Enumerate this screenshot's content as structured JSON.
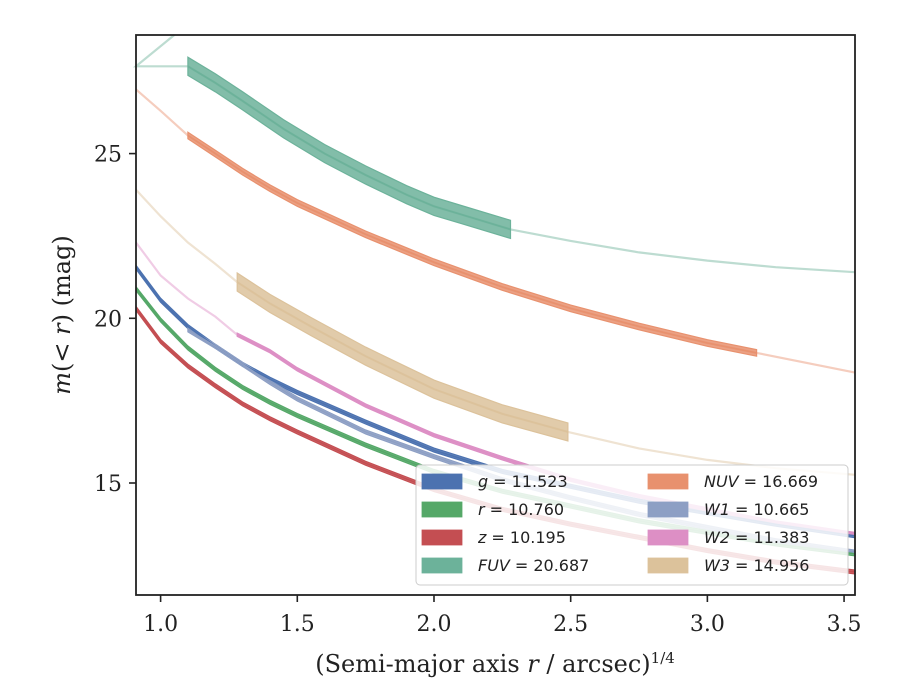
{
  "chart_data": {
    "type": "line",
    "xlabel_html": "(Semi-major axis <tspan font-style='italic'>r</tspan> / arcsec)<tspan baseline-shift='super' font-size='15'>1/4</tspan>",
    "xlabel": "(Semi-major axis r / arcsec)^1/4",
    "ylabel": "m(< r) (mag)",
    "xlim": [
      0.91,
      3.54
    ],
    "ylim": [
      28.6,
      11.6
    ],
    "y_inverted": true,
    "xticks": [
      1.0,
      1.5,
      2.0,
      2.5,
      3.0,
      3.5
    ],
    "xtick_labels": [
      "1.0",
      "1.5",
      "2.0",
      "2.5",
      "3.0",
      "3.5"
    ],
    "yticks": [
      15,
      20,
      25
    ],
    "ytick_labels": [
      "15",
      "20",
      "25"
    ],
    "grid": false,
    "legend_position": "lower-right",
    "legend_columns": 2,
    "series": [
      {
        "name": "g = 11.523",
        "label_sym": "g",
        "label_val": "= 11.523",
        "color": "#4c72b0",
        "x": [
          0.91,
          1.0,
          1.1,
          1.2,
          1.3,
          1.4,
          1.5,
          1.75,
          2.0,
          2.25,
          2.5,
          2.75,
          3.0,
          3.25,
          3.54
        ],
        "y": [
          21.55,
          20.55,
          19.75,
          19.15,
          18.6,
          18.15,
          17.75,
          16.85,
          16.0,
          15.35,
          14.9,
          14.45,
          14.1,
          13.75,
          13.4
        ],
        "band": 0.12,
        "band_x": [
          0.91,
          3.54
        ],
        "faint_x": [
          0.91,
          0.91
        ]
      },
      {
        "name": "r = 10.760",
        "label_sym": "r",
        "label_val": "= 10.760",
        "color": "#55a868",
        "x": [
          0.91,
          1.0,
          1.1,
          1.2,
          1.3,
          1.4,
          1.5,
          1.75,
          2.0,
          2.25,
          2.5,
          2.75,
          3.0,
          3.25,
          3.54
        ],
        "y": [
          20.9,
          19.95,
          19.1,
          18.45,
          17.9,
          17.45,
          17.05,
          16.15,
          15.35,
          14.75,
          14.3,
          13.85,
          13.5,
          13.15,
          12.85
        ],
        "band": 0.12,
        "band_x": [
          0.91,
          3.54
        ],
        "faint_x": [
          0.91,
          0.91
        ]
      },
      {
        "name": "z = 10.195",
        "label_sym": "z",
        "label_val": "= 10.195",
        "color": "#c44e52",
        "x": [
          0.91,
          1.0,
          1.1,
          1.2,
          1.3,
          1.4,
          1.5,
          1.75,
          2.0,
          2.25,
          2.5,
          2.75,
          3.0,
          3.25,
          3.54
        ],
        "y": [
          20.3,
          19.3,
          18.55,
          17.95,
          17.4,
          16.95,
          16.55,
          15.6,
          14.8,
          14.2,
          13.75,
          13.35,
          12.95,
          12.6,
          12.3
        ],
        "band": 0.12,
        "band_x": [
          0.91,
          3.54
        ],
        "faint_x": [
          0.91,
          0.91
        ]
      },
      {
        "name": "FUV = 20.687",
        "label_sym": "FUV",
        "label_val": "= 20.687",
        "color": "#6cb29a",
        "x": [
          1.1,
          1.2,
          1.3,
          1.45,
          1.6,
          1.75,
          1.9,
          2.0,
          2.1,
          2.28,
          2.5,
          2.75,
          3.0,
          3.25,
          3.54
        ],
        "y": [
          27.65,
          27.15,
          26.6,
          25.75,
          25.0,
          24.35,
          23.75,
          23.4,
          23.15,
          22.7,
          22.35,
          22.0,
          21.75,
          21.55,
          21.4
        ],
        "band": 0.55,
        "band_x": [
          1.1,
          2.28
        ],
        "faint_x": [
          0.91,
          3.54
        ],
        "faint_head_x": [
          1.05,
          1.1
        ],
        "faint_head_y": [
          28.6,
          27.9
        ]
      },
      {
        "name": "NUV = 16.669",
        "label_sym": "NUV",
        "label_val": "= 16.669",
        "color": "#e8916e",
        "x": [
          0.91,
          1.0,
          1.1,
          1.2,
          1.3,
          1.4,
          1.5,
          1.75,
          2.0,
          2.25,
          2.5,
          2.75,
          3.0,
          3.18,
          3.54
        ],
        "y": [
          26.95,
          26.3,
          25.55,
          25.0,
          24.45,
          23.95,
          23.5,
          22.55,
          21.7,
          20.95,
          20.3,
          19.75,
          19.25,
          18.95,
          18.35
        ],
        "band": 0.2,
        "band_x": [
          1.1,
          3.18
        ],
        "faint_x": [
          0.91,
          3.54
        ]
      },
      {
        "name": "W1 = 10.665",
        "label_sym": "W1",
        "label_val": "= 10.665",
        "color": "#8d9fc4",
        "x": [
          1.1,
          1.2,
          1.3,
          1.4,
          1.5,
          1.75,
          2.0,
          2.25,
          2.5,
          2.75,
          3.0,
          3.25,
          3.54
        ],
        "y": [
          19.65,
          19.15,
          18.6,
          18.05,
          17.55,
          16.55,
          15.8,
          15.1,
          14.55,
          14.05,
          13.65,
          13.25,
          12.9
        ],
        "band": 0.12,
        "band_x": [
          1.1,
          3.54
        ],
        "faint_x": [
          1.1,
          1.1
        ]
      },
      {
        "name": "W2 = 11.383",
        "label_sym": "W2",
        "label_val": "= 11.383",
        "color": "#dd8fc5",
        "x": [
          0.91,
          1.0,
          1.1,
          1.2,
          1.28,
          1.4,
          1.5,
          1.75,
          2.0,
          2.25,
          2.5,
          2.75,
          3.0,
          3.25,
          3.54
        ],
        "y": [
          22.3,
          21.3,
          20.6,
          20.05,
          19.5,
          19.0,
          18.45,
          17.35,
          16.45,
          15.75,
          15.1,
          14.6,
          14.2,
          13.8,
          13.45
        ],
        "band": 0.1,
        "band_x": [
          1.28,
          3.54
        ],
        "faint_x": [
          0.91,
          3.54
        ]
      },
      {
        "name": "W3 = 14.956",
        "label_sym": "W3",
        "label_val": "= 14.956",
        "color": "#dcc29b",
        "x": [
          0.91,
          1.0,
          1.1,
          1.2,
          1.28,
          1.4,
          1.55,
          1.75,
          2.0,
          2.25,
          2.49,
          2.75,
          3.0,
          3.25,
          3.54
        ],
        "y": [
          23.9,
          23.1,
          22.3,
          21.65,
          21.1,
          20.45,
          19.75,
          18.85,
          17.85,
          17.1,
          16.55,
          16.05,
          15.7,
          15.45,
          15.25
        ],
        "band": 0.55,
        "band_x": [
          1.28,
          2.49
        ],
        "faint_x": [
          0.91,
          3.54
        ]
      }
    ]
  }
}
